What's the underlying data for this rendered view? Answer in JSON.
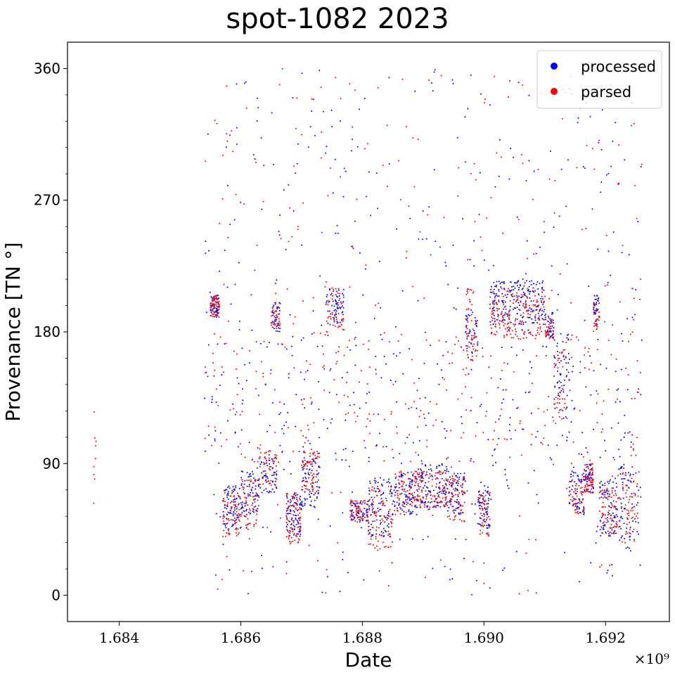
{
  "chart_data": {
    "type": "scatter",
    "title": "spot-1082 2023",
    "xlabel": "Date",
    "ylabel": "Provenance [TN °]",
    "x_offset_label": "×10⁹",
    "xlim": [
      1683150000,
      1693050000
    ],
    "ylim": [
      -18,
      378
    ],
    "x_ticks": [
      1684000000,
      1686000000,
      1688000000,
      1690000000,
      1692000000
    ],
    "x_tick_labels": [
      "1.684",
      "1.686",
      "1.688",
      "1.690",
      "1.692"
    ],
    "y_ticks": [
      0,
      90,
      180,
      270,
      360
    ],
    "y_tick_labels": [
      "0",
      "90",
      "180",
      "270",
      "360"
    ],
    "y_minor_step": 18,
    "grid": false,
    "legend_position": "top-right",
    "series": [
      {
        "name": "processed",
        "color": "#0000ff",
        "clusters": [
          [
            1685500000,
            1685650000,
            190,
            205,
            60
          ],
          [
            1685700000,
            1686000000,
            45,
            75,
            80
          ],
          [
            1686000000,
            1686300000,
            55,
            85,
            70
          ],
          [
            1686300000,
            1686600000,
            70,
            95,
            50
          ],
          [
            1686500000,
            1686650000,
            180,
            200,
            40
          ],
          [
            1686750000,
            1687000000,
            40,
            70,
            80
          ],
          [
            1687000000,
            1687300000,
            60,
            95,
            70
          ],
          [
            1687400000,
            1687700000,
            185,
            210,
            60
          ],
          [
            1687800000,
            1688100000,
            50,
            65,
            60
          ],
          [
            1688100000,
            1688500000,
            40,
            80,
            90
          ],
          [
            1688500000,
            1688900000,
            55,
            85,
            90
          ],
          [
            1688900000,
            1689400000,
            60,
            90,
            110
          ],
          [
            1689400000,
            1689700000,
            55,
            85,
            70
          ],
          [
            1689700000,
            1689900000,
            165,
            195,
            40
          ],
          [
            1689900000,
            1690100000,
            45,
            75,
            60
          ],
          [
            1690100000,
            1691000000,
            185,
            215,
            200
          ],
          [
            1691000000,
            1691150000,
            175,
            195,
            40
          ],
          [
            1691150000,
            1691400000,
            120,
            180,
            50
          ],
          [
            1691400000,
            1691650000,
            55,
            85,
            60
          ],
          [
            1691650000,
            1691800000,
            70,
            90,
            50
          ],
          [
            1691800000,
            1691900000,
            185,
            205,
            30
          ],
          [
            1691900000,
            1692200000,
            40,
            80,
            80
          ],
          [
            1692200000,
            1692550000,
            30,
            90,
            70
          ],
          [
            1685400000,
            1692600000,
            0,
            360,
            420
          ],
          [
            1685400000,
            1692600000,
            90,
            180,
            200
          ]
        ]
      },
      {
        "name": "parsed",
        "color": "#ff0000",
        "clusters": [
          [
            1683580000,
            1683620000,
            55,
            140,
            9
          ],
          [
            1685500000,
            1685650000,
            190,
            205,
            60
          ],
          [
            1685700000,
            1686000000,
            40,
            70,
            70
          ],
          [
            1686000000,
            1686300000,
            45,
            80,
            60
          ],
          [
            1686300000,
            1686600000,
            75,
            100,
            50
          ],
          [
            1686500000,
            1686650000,
            180,
            200,
            30
          ],
          [
            1686750000,
            1687000000,
            35,
            70,
            80
          ],
          [
            1687000000,
            1687300000,
            70,
            100,
            70
          ],
          [
            1687400000,
            1687700000,
            180,
            210,
            50
          ],
          [
            1687800000,
            1688100000,
            50,
            65,
            60
          ],
          [
            1688100000,
            1688500000,
            30,
            75,
            90
          ],
          [
            1688500000,
            1688900000,
            55,
            85,
            80
          ],
          [
            1688900000,
            1689400000,
            60,
            85,
            100
          ],
          [
            1689400000,
            1689700000,
            50,
            80,
            60
          ],
          [
            1689700000,
            1689900000,
            160,
            210,
            50
          ],
          [
            1689900000,
            1690100000,
            40,
            70,
            50
          ],
          [
            1690100000,
            1691000000,
            175,
            210,
            180
          ],
          [
            1691000000,
            1691150000,
            175,
            190,
            30
          ],
          [
            1691150000,
            1691400000,
            120,
            175,
            40
          ],
          [
            1691400000,
            1691650000,
            55,
            80,
            50
          ],
          [
            1691650000,
            1691800000,
            70,
            90,
            60
          ],
          [
            1691800000,
            1691900000,
            180,
            205,
            30
          ],
          [
            1691900000,
            1692200000,
            40,
            75,
            70
          ],
          [
            1692200000,
            1692550000,
            35,
            85,
            60
          ],
          [
            1685400000,
            1692600000,
            0,
            360,
            300
          ],
          [
            1685400000,
            1692600000,
            90,
            180,
            200
          ]
        ]
      }
    ]
  }
}
